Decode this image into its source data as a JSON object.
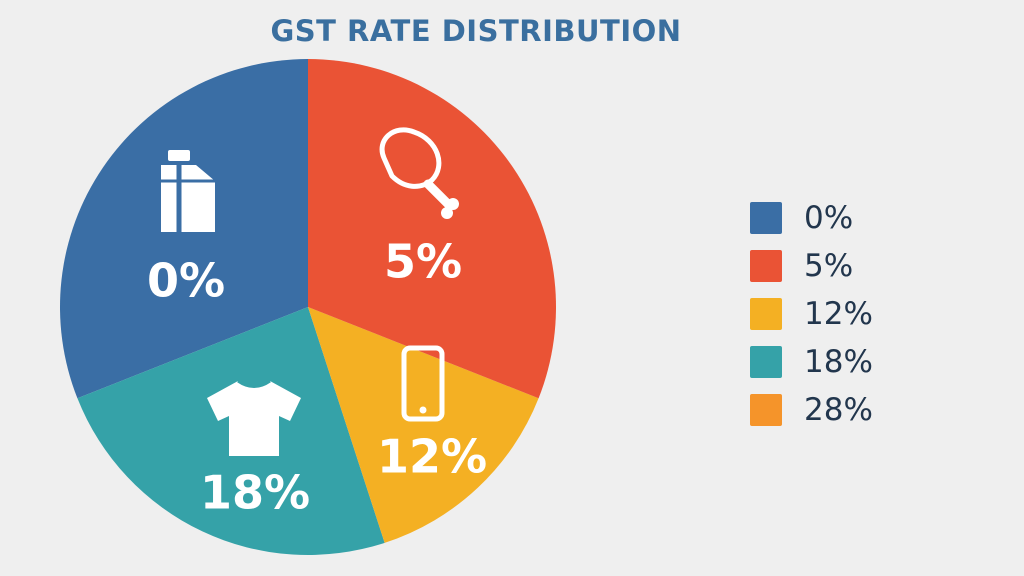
{
  "chart_data": {
    "type": "pie",
    "title": "GST RATE DISTRIBUTION",
    "categories": [
      "0%",
      "5%",
      "12%",
      "18%",
      "28%"
    ],
    "values": [
      31,
      31,
      14,
      24,
      0
    ],
    "colors": [
      "#3a6ea5",
      "#ea5335",
      "#f4b023",
      "#35a2a8",
      "#f5942a"
    ],
    "slice_icons": [
      "milk-carton-icon",
      "chicken-leg-icon",
      "smartphone-icon",
      "tshirt-icon",
      null
    ],
    "legend": {
      "placement": "right",
      "entries": [
        "0%",
        "5%",
        "12%",
        "18%",
        "28%"
      ]
    }
  }
}
